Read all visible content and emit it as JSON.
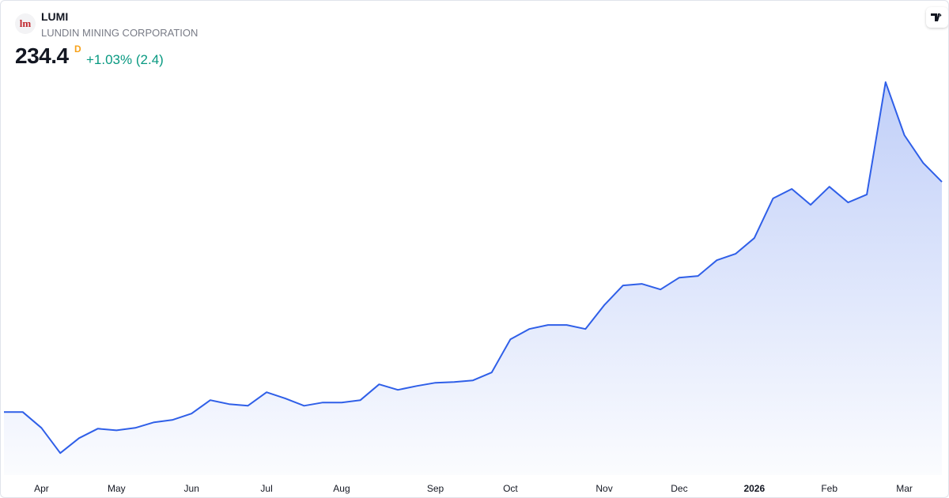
{
  "chart_data": {
    "type": "area",
    "symbol": "LUMI",
    "company": "LUNDIN MINING CORPORATION",
    "logo_text": "lm",
    "last_price": 234.4,
    "interval": "D",
    "change": "+1.03% (2.4)",
    "categories": [
      null,
      null,
      "Apr",
      null,
      null,
      null,
      "May",
      null,
      null,
      null,
      "Jun",
      null,
      null,
      null,
      "Jul",
      null,
      null,
      null,
      "Aug",
      null,
      null,
      null,
      null,
      "Sep",
      null,
      null,
      null,
      "Oct",
      null,
      null,
      null,
      null,
      "Nov",
      null,
      null,
      null,
      "Dec",
      null,
      null,
      null,
      "2026",
      null,
      null,
      null,
      "Feb",
      null,
      null,
      null,
      "Mar",
      null,
      null
    ],
    "series": [
      {
        "color": "#2f5fe8",
        "values": [
          91.1,
          91.1,
          81.2,
          65.5,
          74.8,
          80.7,
          79.7,
          81.2,
          84.7,
          86.2,
          90.1,
          98.5,
          96.0,
          95.0,
          103.4,
          99.5,
          95.0,
          97.0,
          97.0,
          98.5,
          108.3,
          104.9,
          107.3,
          109.3,
          109.8,
          110.8,
          115.7,
          136.4,
          142.8,
          145.3,
          145.3,
          142.8,
          157.6,
          169.9,
          170.9,
          167.4,
          174.8,
          175.8,
          185.6,
          189.6,
          199.4,
          224.1,
          230.0,
          220.1,
          231.4,
          221.6,
          226.5,
          296.5,
          263.5,
          246.2,
          234.4
        ]
      }
    ],
    "ylim": [
      40,
      310
    ]
  }
}
